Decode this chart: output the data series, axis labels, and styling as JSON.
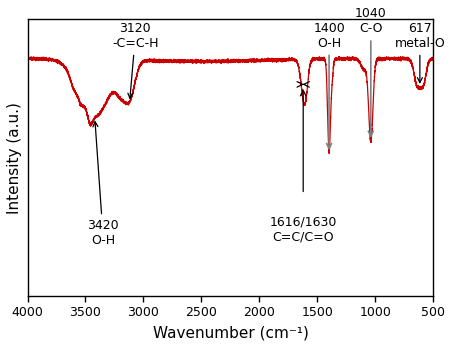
{
  "xlim": [
    4000,
    500
  ],
  "xlabel": "Wavenumber (cm⁻¹)",
  "ylabel": "Intensity (a.u.)",
  "line_color": "#cc0000",
  "background_color": "#ffffff",
  "baseline": 0.78,
  "ylim": [
    -0.55,
    1.0
  ],
  "xticks": [
    4000,
    3500,
    3000,
    2500,
    2000,
    1500,
    1000,
    500
  ],
  "fontsize_annot": 9,
  "fontsize_axis": 11
}
